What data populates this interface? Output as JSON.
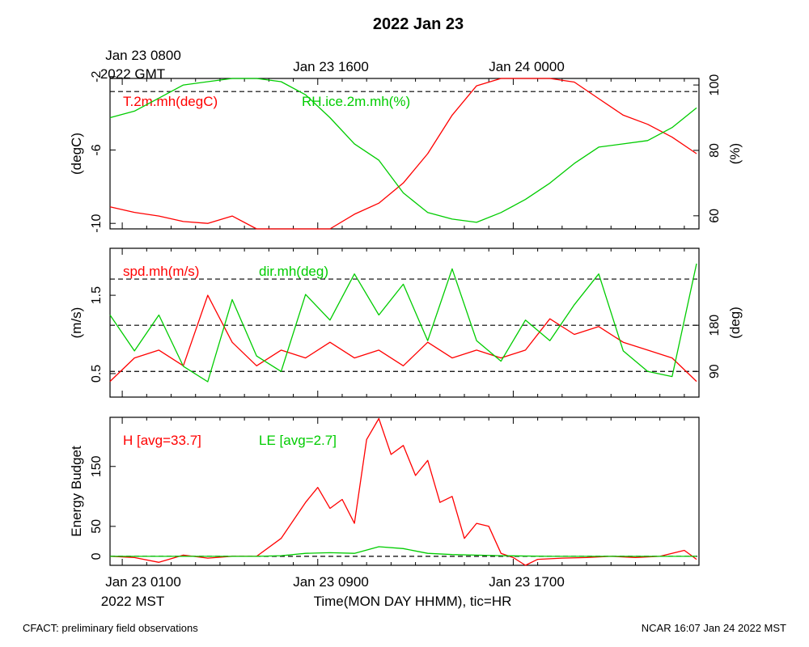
{
  "title": "2022 Jan 23",
  "footer_left": "CFACT: preliminary field observations",
  "footer_right": "NCAR 16:07 Jan 24 2022 MST",
  "top_axis": {
    "first_label": "Jan 23 0800",
    "first_label_line2": "2022 GMT",
    "labels": [
      "Jan 23 1600",
      "Jan 24 0000"
    ]
  },
  "bottom_axis": {
    "first_label": "Jan 23 0100",
    "first_label_line2": "2022 MST",
    "labels": [
      "Jan 23 0900",
      "Jan 23 1700"
    ],
    "title": "Time(MON DAY HHMM), tic=HR"
  },
  "colors": {
    "red": "#ff0000",
    "green": "#00cc00",
    "axis": "#000000"
  },
  "chart_data": [
    {
      "type": "line",
      "x_unit": "hours since Jan 23 0000 MST",
      "xlim": [
        0.5,
        24.6
      ],
      "left_axis": {
        "label": "(degC)",
        "ticks": [
          -2,
          -6,
          -10
        ],
        "tick_labels": [
          "-2",
          "-6",
          "-10"
        ],
        "ylim": [
          -10.3,
          -2.1
        ]
      },
      "right_axis": {
        "label": "(%)",
        "ticks": [
          100,
          80,
          60
        ],
        "tick_labels": [
          "100",
          "80",
          "60"
        ],
        "ylim": [
          56,
          102
        ]
      },
      "reference_lines": [
        {
          "axis": "right",
          "value": 98
        }
      ],
      "series": [
        {
          "name": "T.2m.mh(degC)",
          "color": "#ff0000",
          "axis": "left",
          "x": [
            0.5,
            1.5,
            2.5,
            3.5,
            4.5,
            5.5,
            6.5,
            7.5,
            8.5,
            9.5,
            10.5,
            11.5,
            12.5,
            13.5,
            14.5,
            15.5,
            16.5,
            17.5,
            18.5,
            19.5,
            20.5,
            21.5,
            22.5,
            23.5,
            24.5
          ],
          "y": [
            -9.1,
            -9.4,
            -9.6,
            -9.9,
            -10.0,
            -9.6,
            -10.3,
            -10.8,
            -10.6,
            -10.3,
            -9.5,
            -8.9,
            -7.8,
            -6.2,
            -4.1,
            -2.5,
            -1.6,
            -1.3,
            -1.7,
            -2.3,
            -3.2,
            -4.1,
            -4.6,
            -5.3,
            -6.2
          ]
        },
        {
          "name": "RH.ice.2m.mh(%)",
          "color": "#00cc00",
          "axis": "right",
          "x": [
            0.5,
            1.5,
            2.5,
            3.5,
            4.5,
            5.5,
            6.5,
            7.5,
            8.5,
            9.5,
            10.5,
            11.5,
            12.5,
            13.5,
            14.5,
            15.5,
            16.5,
            17.5,
            18.5,
            19.5,
            20.5,
            21.5,
            22.5,
            23.5,
            24.5
          ],
          "y": [
            90,
            92,
            96,
            100,
            101,
            104,
            104,
            101,
            97,
            90,
            82,
            77,
            67,
            61,
            59,
            58,
            61,
            65,
            70,
            76,
            81,
            82,
            83,
            87,
            93
          ]
        }
      ]
    },
    {
      "type": "line",
      "x_unit": "hours since Jan 23 0000 MST",
      "xlim": [
        0.5,
        24.6
      ],
      "left_axis": {
        "label": "(m/s)",
        "ticks": [
          0.5,
          1.5
        ],
        "tick_labels": [
          "0.5",
          "1.5"
        ],
        "ylim": [
          0.2,
          2.1
        ]
      },
      "right_axis": {
        "label": "(deg)",
        "ticks": [
          90,
          180
        ],
        "tick_labels": [
          "90",
          "180"
        ],
        "ylim": [
          40,
          330
        ]
      },
      "reference_lines": [
        {
          "axis": "right",
          "value": 90
        },
        {
          "axis": "right",
          "value": 180
        },
        {
          "axis": "right",
          "value": 270
        }
      ],
      "series": [
        {
          "name": "spd.mh(m/s)",
          "color": "#ff0000",
          "axis": "left",
          "x": [
            0.5,
            1.5,
            2.5,
            3.5,
            4.5,
            5.5,
            6.5,
            7.5,
            8.5,
            9.5,
            10.5,
            11.5,
            12.5,
            13.5,
            14.5,
            15.5,
            16.5,
            17.5,
            18.5,
            19.5,
            20.5,
            21.5,
            22.5,
            23.5,
            24.5
          ],
          "y": [
            0.4,
            0.7,
            0.8,
            0.6,
            1.5,
            0.9,
            0.6,
            0.8,
            0.7,
            0.9,
            0.7,
            0.8,
            0.6,
            0.9,
            0.7,
            0.8,
            0.7,
            0.8,
            1.2,
            1.0,
            1.1,
            0.9,
            0.8,
            0.7,
            0.4
          ]
        },
        {
          "name": "dir.mh(deg)",
          "color": "#00cc00",
          "axis": "right",
          "x": [
            0.5,
            1.5,
            2.5,
            3.5,
            4.5,
            5.5,
            6.5,
            7.5,
            8.5,
            9.5,
            10.5,
            11.5,
            12.5,
            13.5,
            14.5,
            15.5,
            16.5,
            17.5,
            18.5,
            19.5,
            20.5,
            21.5,
            22.5,
            23.5,
            24.5
          ],
          "y": [
            200,
            130,
            200,
            100,
            70,
            230,
            120,
            90,
            240,
            190,
            280,
            200,
            260,
            150,
            290,
            150,
            110,
            190,
            150,
            220,
            280,
            130,
            90,
            80,
            300
          ]
        }
      ]
    },
    {
      "type": "line",
      "x_unit": "hours since Jan 23 0000 MST",
      "xlim": [
        0.5,
        24.6
      ],
      "left_axis": {
        "label": "Energy Budget",
        "ticks": [
          0,
          50,
          150
        ],
        "tick_labels": [
          "0",
          "50",
          "150"
        ],
        "ylim": [
          -15,
          232
        ]
      },
      "reference_lines": [
        {
          "axis": "left",
          "value": 0
        }
      ],
      "series": [
        {
          "name": "H [avg=33.7]",
          "color": "#ff0000",
          "axis": "left",
          "x": [
            0.5,
            1.5,
            2.5,
            3.5,
            4.5,
            5.5,
            6.5,
            7.5,
            8.5,
            9.0,
            9.5,
            10.0,
            10.5,
            11.0,
            11.5,
            12.0,
            12.5,
            13.0,
            13.5,
            14.0,
            14.5,
            15.0,
            15.5,
            16.0,
            16.5,
            17.0,
            17.5,
            18.0,
            19.0,
            20.0,
            21.0,
            22.0,
            23.0,
            24.0,
            24.5
          ],
          "y": [
            0,
            -2,
            -10,
            2,
            -3,
            0,
            0,
            30,
            90,
            115,
            80,
            95,
            55,
            195,
            230,
            170,
            185,
            135,
            160,
            90,
            100,
            30,
            55,
            50,
            5,
            -2,
            -15,
            -5,
            -3,
            -2,
            0,
            -2,
            0,
            10,
            -5
          ]
        },
        {
          "name": "LE [avg=2.7]",
          "color": "#00cc00",
          "axis": "left",
          "x": [
            0.5,
            2.5,
            4.5,
            6.5,
            7.5,
            8.5,
            9.5,
            10.5,
            11.5,
            12.5,
            13.5,
            14.5,
            15.5,
            16.5,
            18.5,
            20.5,
            22.5,
            24.5
          ],
          "y": [
            0,
            0,
            0,
            0,
            1,
            5,
            6,
            5,
            16,
            13,
            5,
            3,
            2,
            1,
            0,
            0,
            0,
            0
          ]
        }
      ]
    }
  ]
}
